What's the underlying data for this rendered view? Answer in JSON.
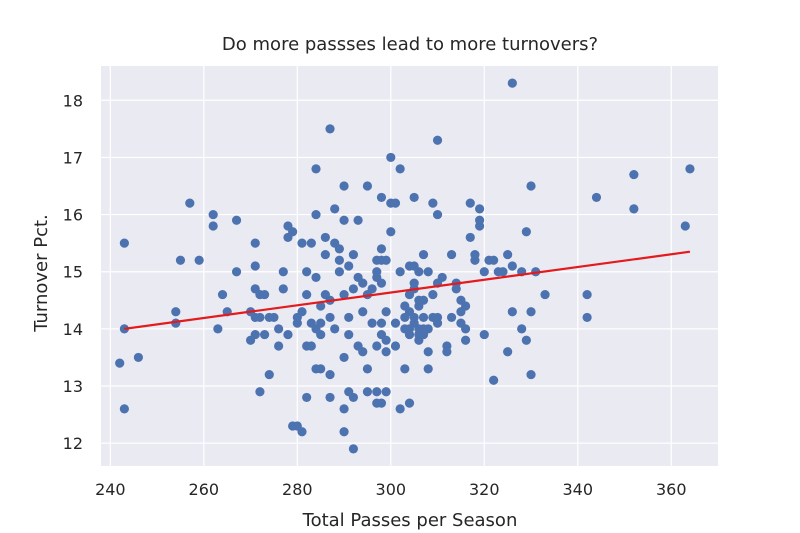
{
  "chart_data": {
    "type": "scatter",
    "title": "Do more passses lead to more turnovers?",
    "xlabel": "Total Passes per Season",
    "ylabel": "Turnover Pct.",
    "xlim": [
      238,
      370
    ],
    "ylim": [
      11.6,
      18.6
    ],
    "xticks": [
      "240",
      "260",
      "280",
      "300",
      "320",
      "340",
      "360"
    ],
    "yticks": [
      "12",
      "13",
      "14",
      "15",
      "16",
      "17",
      "18"
    ],
    "grid": true,
    "legend": "none",
    "colors": {
      "background": "#EAEAF2",
      "points": "#4C72B0",
      "trend": "#E41A1C",
      "grid": "#FFFFFF"
    },
    "trendline": {
      "x": [
        243,
        364
      ],
      "y": [
        14.0,
        15.35
      ]
    },
    "points": [
      [
        242,
        13.4
      ],
      [
        243,
        14.0
      ],
      [
        243,
        12.6
      ],
      [
        243,
        15.5
      ],
      [
        246,
        13.5
      ],
      [
        254,
        14.3
      ],
      [
        254,
        14.1
      ],
      [
        255,
        15.2
      ],
      [
        257,
        16.2
      ],
      [
        259,
        15.2
      ],
      [
        262,
        16.0
      ],
      [
        262,
        15.8
      ],
      [
        263,
        14.0
      ],
      [
        264,
        14.6
      ],
      [
        265,
        14.3
      ],
      [
        267,
        15.9
      ],
      [
        267,
        15.0
      ],
      [
        270,
        13.8
      ],
      [
        270,
        14.3
      ],
      [
        271,
        15.5
      ],
      [
        271,
        15.1
      ],
      [
        271,
        14.7
      ],
      [
        271,
        14.2
      ],
      [
        271,
        13.9
      ],
      [
        272,
        14.2
      ],
      [
        272,
        12.9
      ],
      [
        272,
        14.6
      ],
      [
        273,
        14.6
      ],
      [
        273,
        13.9
      ],
      [
        274,
        13.2
      ],
      [
        274,
        14.2
      ],
      [
        275,
        14.2
      ],
      [
        276,
        13.7
      ],
      [
        276,
        14.0
      ],
      [
        277,
        15.0
      ],
      [
        277,
        14.7
      ],
      [
        278,
        15.8
      ],
      [
        278,
        15.6
      ],
      [
        278,
        13.9
      ],
      [
        279,
        15.7
      ],
      [
        279,
        12.3
      ],
      [
        280,
        12.3
      ],
      [
        280,
        14.1
      ],
      [
        280,
        14.2
      ],
      [
        281,
        12.2
      ],
      [
        281,
        15.5
      ],
      [
        281,
        14.3
      ],
      [
        282,
        14.6
      ],
      [
        282,
        15.0
      ],
      [
        282,
        13.7
      ],
      [
        282,
        12.8
      ],
      [
        283,
        15.5
      ],
      [
        283,
        14.1
      ],
      [
        283,
        13.7
      ],
      [
        284,
        14.9
      ],
      [
        284,
        14.0
      ],
      [
        284,
        13.3
      ],
      [
        284,
        16.0
      ],
      [
        284,
        16.8
      ],
      [
        285,
        14.1
      ],
      [
        285,
        14.4
      ],
      [
        285,
        13.3
      ],
      [
        285,
        13.9
      ],
      [
        286,
        15.3
      ],
      [
        286,
        14.6
      ],
      [
        286,
        15.6
      ],
      [
        287,
        13.2
      ],
      [
        287,
        12.8
      ],
      [
        287,
        14.5
      ],
      [
        287,
        14.2
      ],
      [
        287,
        17.5
      ],
      [
        288,
        14.0
      ],
      [
        288,
        15.5
      ],
      [
        288,
        16.1
      ],
      [
        289,
        15.4
      ],
      [
        289,
        15.0
      ],
      [
        289,
        15.2
      ],
      [
        290,
        13.5
      ],
      [
        290,
        12.6
      ],
      [
        290,
        14.6
      ],
      [
        290,
        15.9
      ],
      [
        290,
        16.5
      ],
      [
        290,
        12.2
      ],
      [
        291,
        13.9
      ],
      [
        291,
        12.9
      ],
      [
        291,
        15.1
      ],
      [
        291,
        14.2
      ],
      [
        292,
        11.9
      ],
      [
        292,
        12.8
      ],
      [
        292,
        14.7
      ],
      [
        292,
        15.3
      ],
      [
        293,
        13.7
      ],
      [
        293,
        15.9
      ],
      [
        293,
        14.9
      ],
      [
        294,
        14.8
      ],
      [
        294,
        14.3
      ],
      [
        294,
        13.6
      ],
      [
        295,
        14.6
      ],
      [
        295,
        16.5
      ],
      [
        295,
        13.3
      ],
      [
        295,
        12.9
      ],
      [
        296,
        14.1
      ],
      [
        296,
        14.7
      ],
      [
        297,
        12.7
      ],
      [
        297,
        13.7
      ],
      [
        297,
        15.2
      ],
      [
        297,
        14.9
      ],
      [
        297,
        15.0
      ],
      [
        297,
        12.9
      ],
      [
        298,
        12.7
      ],
      [
        298,
        14.1
      ],
      [
        298,
        15.4
      ],
      [
        298,
        16.3
      ],
      [
        298,
        14.8
      ],
      [
        298,
        15.2
      ],
      [
        298,
        13.9
      ],
      [
        299,
        12.9
      ],
      [
        299,
        13.6
      ],
      [
        299,
        14.3
      ],
      [
        299,
        15.2
      ],
      [
        299,
        13.8
      ],
      [
        300,
        17.0
      ],
      [
        300,
        15.7
      ],
      [
        300,
        16.2
      ],
      [
        301,
        16.2
      ],
      [
        301,
        14.1
      ],
      [
        301,
        13.7
      ],
      [
        302,
        16.8
      ],
      [
        302,
        15.0
      ],
      [
        302,
        12.6
      ],
      [
        303,
        14.4
      ],
      [
        303,
        14.0
      ],
      [
        303,
        13.3
      ],
      [
        303,
        14.2
      ],
      [
        304,
        15.1
      ],
      [
        304,
        14.3
      ],
      [
        304,
        14.6
      ],
      [
        304,
        13.9
      ],
      [
        304,
        14.0
      ],
      [
        304,
        12.7
      ],
      [
        305,
        14.2
      ],
      [
        305,
        14.8
      ],
      [
        305,
        14.7
      ],
      [
        305,
        14.1
      ],
      [
        305,
        16.3
      ],
      [
        305,
        15.1
      ],
      [
        306,
        14.0
      ],
      [
        306,
        13.8
      ],
      [
        306,
        13.9
      ],
      [
        306,
        14.4
      ],
      [
        306,
        15.0
      ],
      [
        306,
        14.5
      ],
      [
        307,
        15.3
      ],
      [
        307,
        14.5
      ],
      [
        307,
        13.9
      ],
      [
        307,
        14.0
      ],
      [
        307,
        14.2
      ],
      [
        308,
        13.3
      ],
      [
        308,
        14.0
      ],
      [
        308,
        13.6
      ],
      [
        308,
        15.0
      ],
      [
        309,
        14.2
      ],
      [
        309,
        14.6
      ],
      [
        309,
        16.2
      ],
      [
        310,
        14.1
      ],
      [
        310,
        16.0
      ],
      [
        310,
        14.2
      ],
      [
        310,
        14.8
      ],
      [
        310,
        17.3
      ],
      [
        311,
        14.9
      ],
      [
        312,
        13.7
      ],
      [
        312,
        13.6
      ],
      [
        313,
        15.3
      ],
      [
        313,
        14.2
      ],
      [
        314,
        14.8
      ],
      [
        314,
        14.7
      ],
      [
        315,
        14.5
      ],
      [
        315,
        14.1
      ],
      [
        315,
        14.3
      ],
      [
        316,
        14.0
      ],
      [
        316,
        13.8
      ],
      [
        316,
        14.4
      ],
      [
        317,
        15.6
      ],
      [
        317,
        16.2
      ],
      [
        318,
        15.2
      ],
      [
        318,
        15.3
      ],
      [
        319,
        15.8
      ],
      [
        319,
        15.9
      ],
      [
        319,
        16.1
      ],
      [
        320,
        13.9
      ],
      [
        320,
        15.0
      ],
      [
        321,
        15.2
      ],
      [
        322,
        13.1
      ],
      [
        322,
        15.2
      ],
      [
        323,
        15.0
      ],
      [
        324,
        15.0
      ],
      [
        325,
        13.6
      ],
      [
        325,
        15.3
      ],
      [
        326,
        14.3
      ],
      [
        326,
        18.3
      ],
      [
        326,
        15.1
      ],
      [
        328,
        15.0
      ],
      [
        328,
        14.0
      ],
      [
        329,
        15.7
      ],
      [
        329,
        13.8
      ],
      [
        330,
        14.3
      ],
      [
        330,
        13.2
      ],
      [
        330,
        16.5
      ],
      [
        331,
        15.0
      ],
      [
        333,
        14.6
      ],
      [
        342,
        14.2
      ],
      [
        342,
        14.6
      ],
      [
        344,
        16.3
      ],
      [
        352,
        16.7
      ],
      [
        352,
        16.1
      ],
      [
        363,
        15.8
      ],
      [
        364,
        16.8
      ]
    ]
  }
}
